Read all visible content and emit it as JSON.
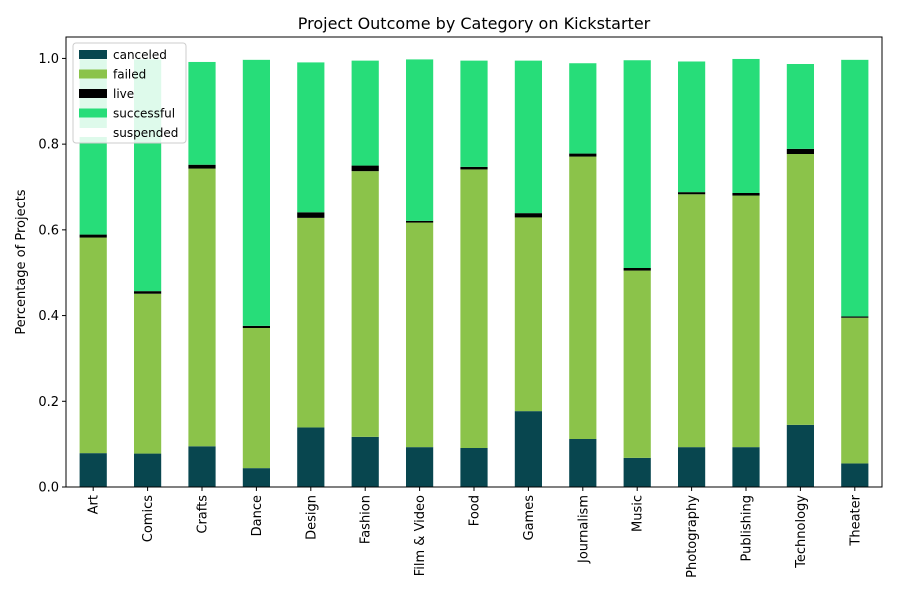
{
  "chart_data": {
    "type": "bar",
    "stacked": true,
    "title": "Project Outcome by Category on Kickstarter",
    "xlabel": "",
    "ylabel": "Percentage of Projects",
    "ylim": [
      0,
      1.05
    ],
    "yticks": [
      "0.0",
      "0.2",
      "0.4",
      "0.6",
      "0.8",
      "1.0"
    ],
    "legend_position": "top-left",
    "grid": false,
    "categories": [
      "Art",
      "Comics",
      "Crafts",
      "Dance",
      "Design",
      "Fashion",
      "Film & Video",
      "Food",
      "Games",
      "Journalism",
      "Music",
      "Photography",
      "Publishing",
      "Technology",
      "Theater"
    ],
    "series": [
      {
        "name": "canceled",
        "color": "#08464f",
        "values": [
          0.079,
          0.078,
          0.095,
          0.044,
          0.139,
          0.117,
          0.093,
          0.091,
          0.177,
          0.112,
          0.068,
          0.093,
          0.093,
          0.145,
          0.055
        ]
      },
      {
        "name": "failed",
        "color": "#8bc34a",
        "values": [
          0.503,
          0.373,
          0.648,
          0.327,
          0.489,
          0.62,
          0.524,
          0.65,
          0.452,
          0.659,
          0.437,
          0.59,
          0.587,
          0.632,
          0.34
        ]
      },
      {
        "name": "live",
        "color": "#000000",
        "values": [
          0.007,
          0.006,
          0.009,
          0.005,
          0.013,
          0.013,
          0.004,
          0.006,
          0.01,
          0.007,
          0.006,
          0.005,
          0.006,
          0.012,
          0.003
        ]
      },
      {
        "name": "successful",
        "color": "#27dd79",
        "values": [
          0.409,
          0.541,
          0.24,
          0.621,
          0.35,
          0.245,
          0.377,
          0.248,
          0.356,
          0.211,
          0.485,
          0.305,
          0.313,
          0.198,
          0.599
        ]
      },
      {
        "name": "suspended",
        "color": "#ffffff",
        "values": [
          0.002,
          0.002,
          0.002,
          0.001,
          0.004,
          0.002,
          0.001,
          0.002,
          0.002,
          0.001,
          0.002,
          0.001,
          0.001,
          0.002,
          0.001
        ]
      }
    ]
  }
}
